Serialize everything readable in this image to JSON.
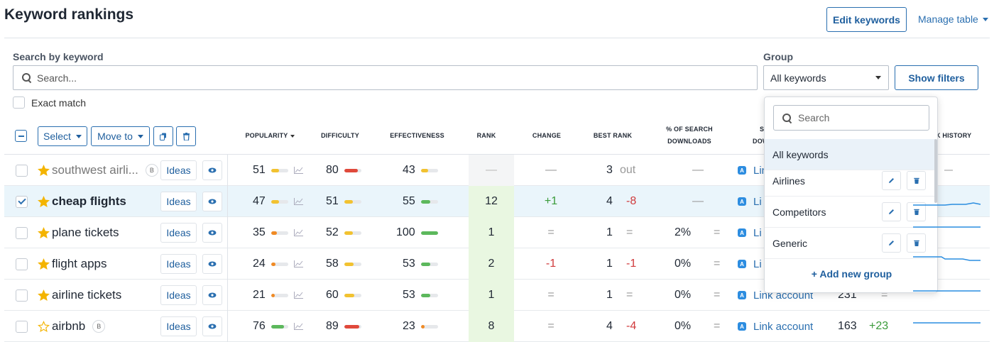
{
  "header": {
    "title": "Keyword rankings",
    "edit_keywords": "Edit keywords",
    "manage_table": "Manage table"
  },
  "search": {
    "label": "Search by keyword",
    "placeholder": "Search...",
    "exact_match": "Exact match"
  },
  "group": {
    "label": "Group",
    "selected": "All keywords",
    "show_filters": "Show filters",
    "dropdown": {
      "search_placeholder": "Search",
      "items": [
        "All keywords",
        "Airlines",
        "Competitors",
        "Generic"
      ],
      "add_label": "+ Add new group"
    }
  },
  "toolbar": {
    "select_label": "Select",
    "move_to_label": "Move to"
  },
  "columns": {
    "popularity": "POPULARITY",
    "difficulty": "DIFFICULTY",
    "effectiveness": "EFFECTIVENESS",
    "rank": "RANK",
    "change": "CHANGE",
    "best_rank": "BEST RANK",
    "pct_search_1": "% OF SEARCH",
    "pct_search_2": "DOWNLOADS",
    "s_partial_1": "S",
    "s_partial_2": "DOW",
    "rank_history_partial": "K HISTORY"
  },
  "rows": [
    {
      "keyword": "southwest airli...",
      "badge": "B",
      "ideas": "Ideas",
      "popularity": "51",
      "difficulty": "80",
      "effectiveness": "43",
      "rank": "—",
      "change": "—",
      "best_rank": "3",
      "best_delta": "out",
      "pct": "—",
      "link": "Link",
      "pop_level": 0.45,
      "diff_level": 0.8,
      "eff_level": 0.43
    },
    {
      "keyword": "cheap flights",
      "ideas": "Ideas",
      "popularity": "47",
      "difficulty": "51",
      "effectiveness": "55",
      "rank": "12",
      "change": "+1",
      "best_rank": "4",
      "best_delta": "-8",
      "pct": "—",
      "link": "Li",
      "pop_level": 0.45,
      "diff_level": 0.5,
      "eff_level": 0.55
    },
    {
      "keyword": "plane tickets",
      "ideas": "Ideas",
      "popularity": "35",
      "difficulty": "52",
      "effectiveness": "100",
      "rank": "1",
      "change": "=",
      "best_rank": "1",
      "best_delta": "=",
      "pct": "2%",
      "pct_change": "=",
      "link": "Li",
      "pop_level": 0.35,
      "diff_level": 0.5,
      "eff_level": 1.0
    },
    {
      "keyword": "flight apps",
      "ideas": "Ideas",
      "popularity": "24",
      "difficulty": "58",
      "effectiveness": "53",
      "rank": "2",
      "change": "-1",
      "best_rank": "1",
      "best_delta": "-1",
      "pct": "0%",
      "pct_change": "=",
      "link": "Li",
      "pop_level": 0.25,
      "diff_level": 0.55,
      "eff_level": 0.53
    },
    {
      "keyword": "airline tickets",
      "ideas": "Ideas",
      "popularity": "21",
      "difficulty": "60",
      "effectiveness": "53",
      "rank": "1",
      "change": "=",
      "best_rank": "1",
      "best_delta": "=",
      "pct": "0%",
      "pct_change": "=",
      "link": "Link account",
      "downloads": "231",
      "dl_change": "=",
      "pop_level": 0.2,
      "diff_level": 0.6,
      "eff_level": 0.53
    },
    {
      "keyword": "airbnb",
      "badge": "B",
      "ideas": "Ideas",
      "popularity": "76",
      "difficulty": "89",
      "effectiveness": "23",
      "rank": "8",
      "change": "=",
      "best_rank": "4",
      "best_delta": "-4",
      "pct": "0%",
      "pct_change": "=",
      "link": "Link account",
      "downloads": "163",
      "dl_change": "+23",
      "pop_level": 0.75,
      "diff_level": 0.9,
      "eff_level": 0.23
    }
  ],
  "colors": {
    "accent": "#2a6fb0",
    "yellow": "#f2c230",
    "red": "#e0493b",
    "green": "#5cb85c",
    "orange": "#f08a24",
    "star": "#f4b400",
    "rank_bg": "#e9f7e1"
  }
}
